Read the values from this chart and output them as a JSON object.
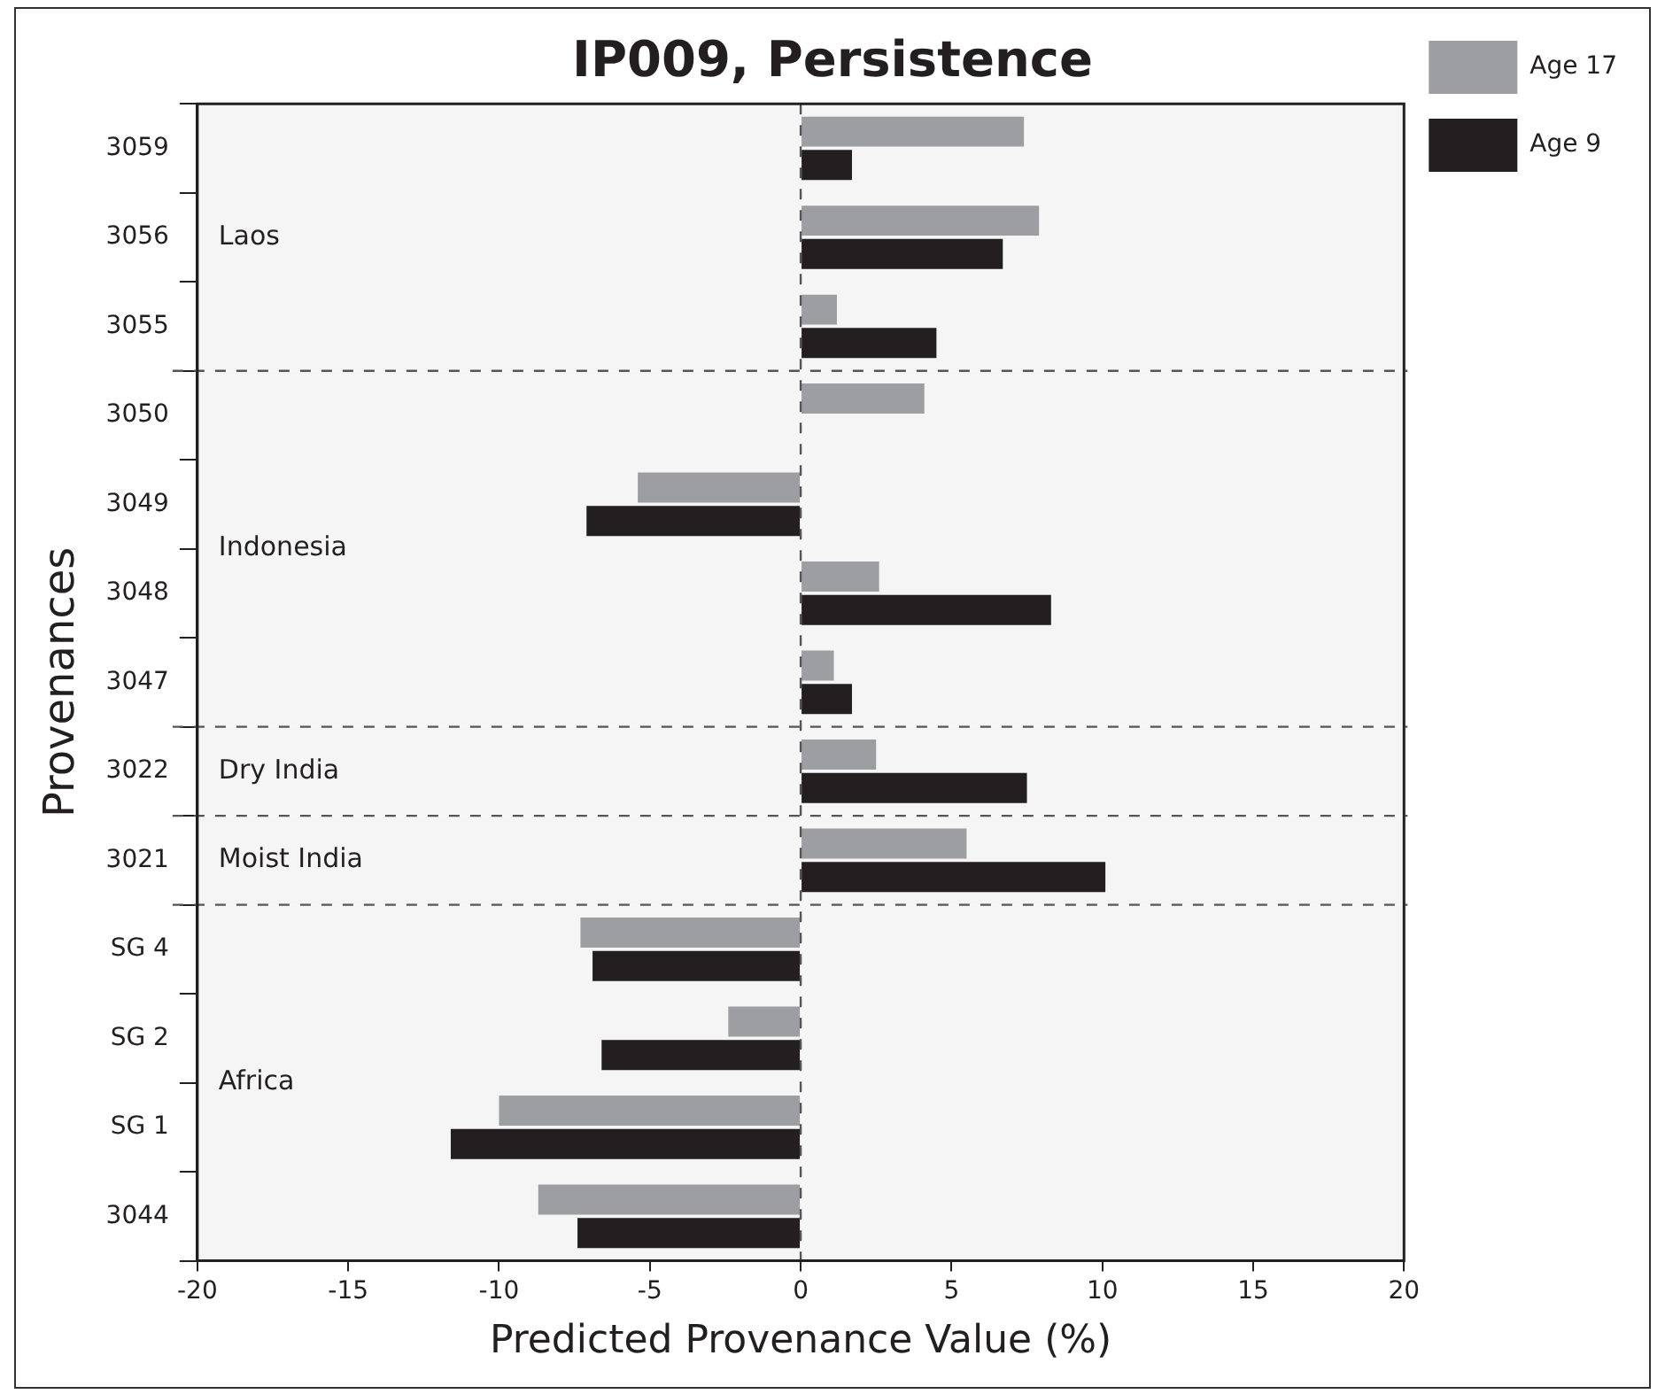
{
  "chart_data": {
    "type": "bar",
    "orientation": "horizontal",
    "title": "IP009, Persistence",
    "xlabel": "Predicted Provenance Value (%)",
    "ylabel": "Provenances",
    "categories": [
      "3059",
      "3056",
      "3055",
      "3050",
      "3049",
      "3048",
      "3047",
      "3022",
      "3021",
      "SG 4",
      "SG 2",
      "SG 1",
      "3044"
    ],
    "series": [
      {
        "name": "Age 17",
        "color": "#9d9ea2",
        "values": [
          7.4,
          7.9,
          1.2,
          4.1,
          -5.4,
          2.6,
          1.1,
          2.5,
          5.5,
          -7.3,
          -2.4,
          -10.0,
          -8.7
        ]
      },
      {
        "name": "Age 9",
        "color": "#231f20",
        "values": [
          1.7,
          6.7,
          4.5,
          null,
          -7.1,
          8.3,
          1.7,
          7.5,
          10.1,
          -6.9,
          -6.6,
          -11.6,
          -7.4
        ]
      }
    ],
    "xlim": [
      -20,
      20
    ],
    "xticks": [
      -20,
      -15,
      -10,
      -5,
      0,
      5,
      10,
      15,
      20
    ],
    "ref_lines": [
      {
        "axis": "x",
        "value": 0,
        "line_style": "dashed"
      }
    ],
    "bands": [
      {
        "axis": "y",
        "from": "3059",
        "to": "3055",
        "label": "Laos",
        "color": "#f5f5f5"
      },
      {
        "axis": "y",
        "from": "3050",
        "to": "3047",
        "label": "Indonesia",
        "color": "#f5f5f5"
      },
      {
        "axis": "y",
        "from": "3022",
        "to": "3022",
        "label": "Dry India",
        "color": "#f5f5f5"
      },
      {
        "axis": "y",
        "from": "3021",
        "to": "3021",
        "label": "Moist India",
        "color": "#f5f5f5"
      },
      {
        "axis": "y",
        "from": "SG 4",
        "to": "3044",
        "label": "Africa",
        "color": "#f5f5f5"
      }
    ],
    "grid": false,
    "legend": "top right"
  }
}
